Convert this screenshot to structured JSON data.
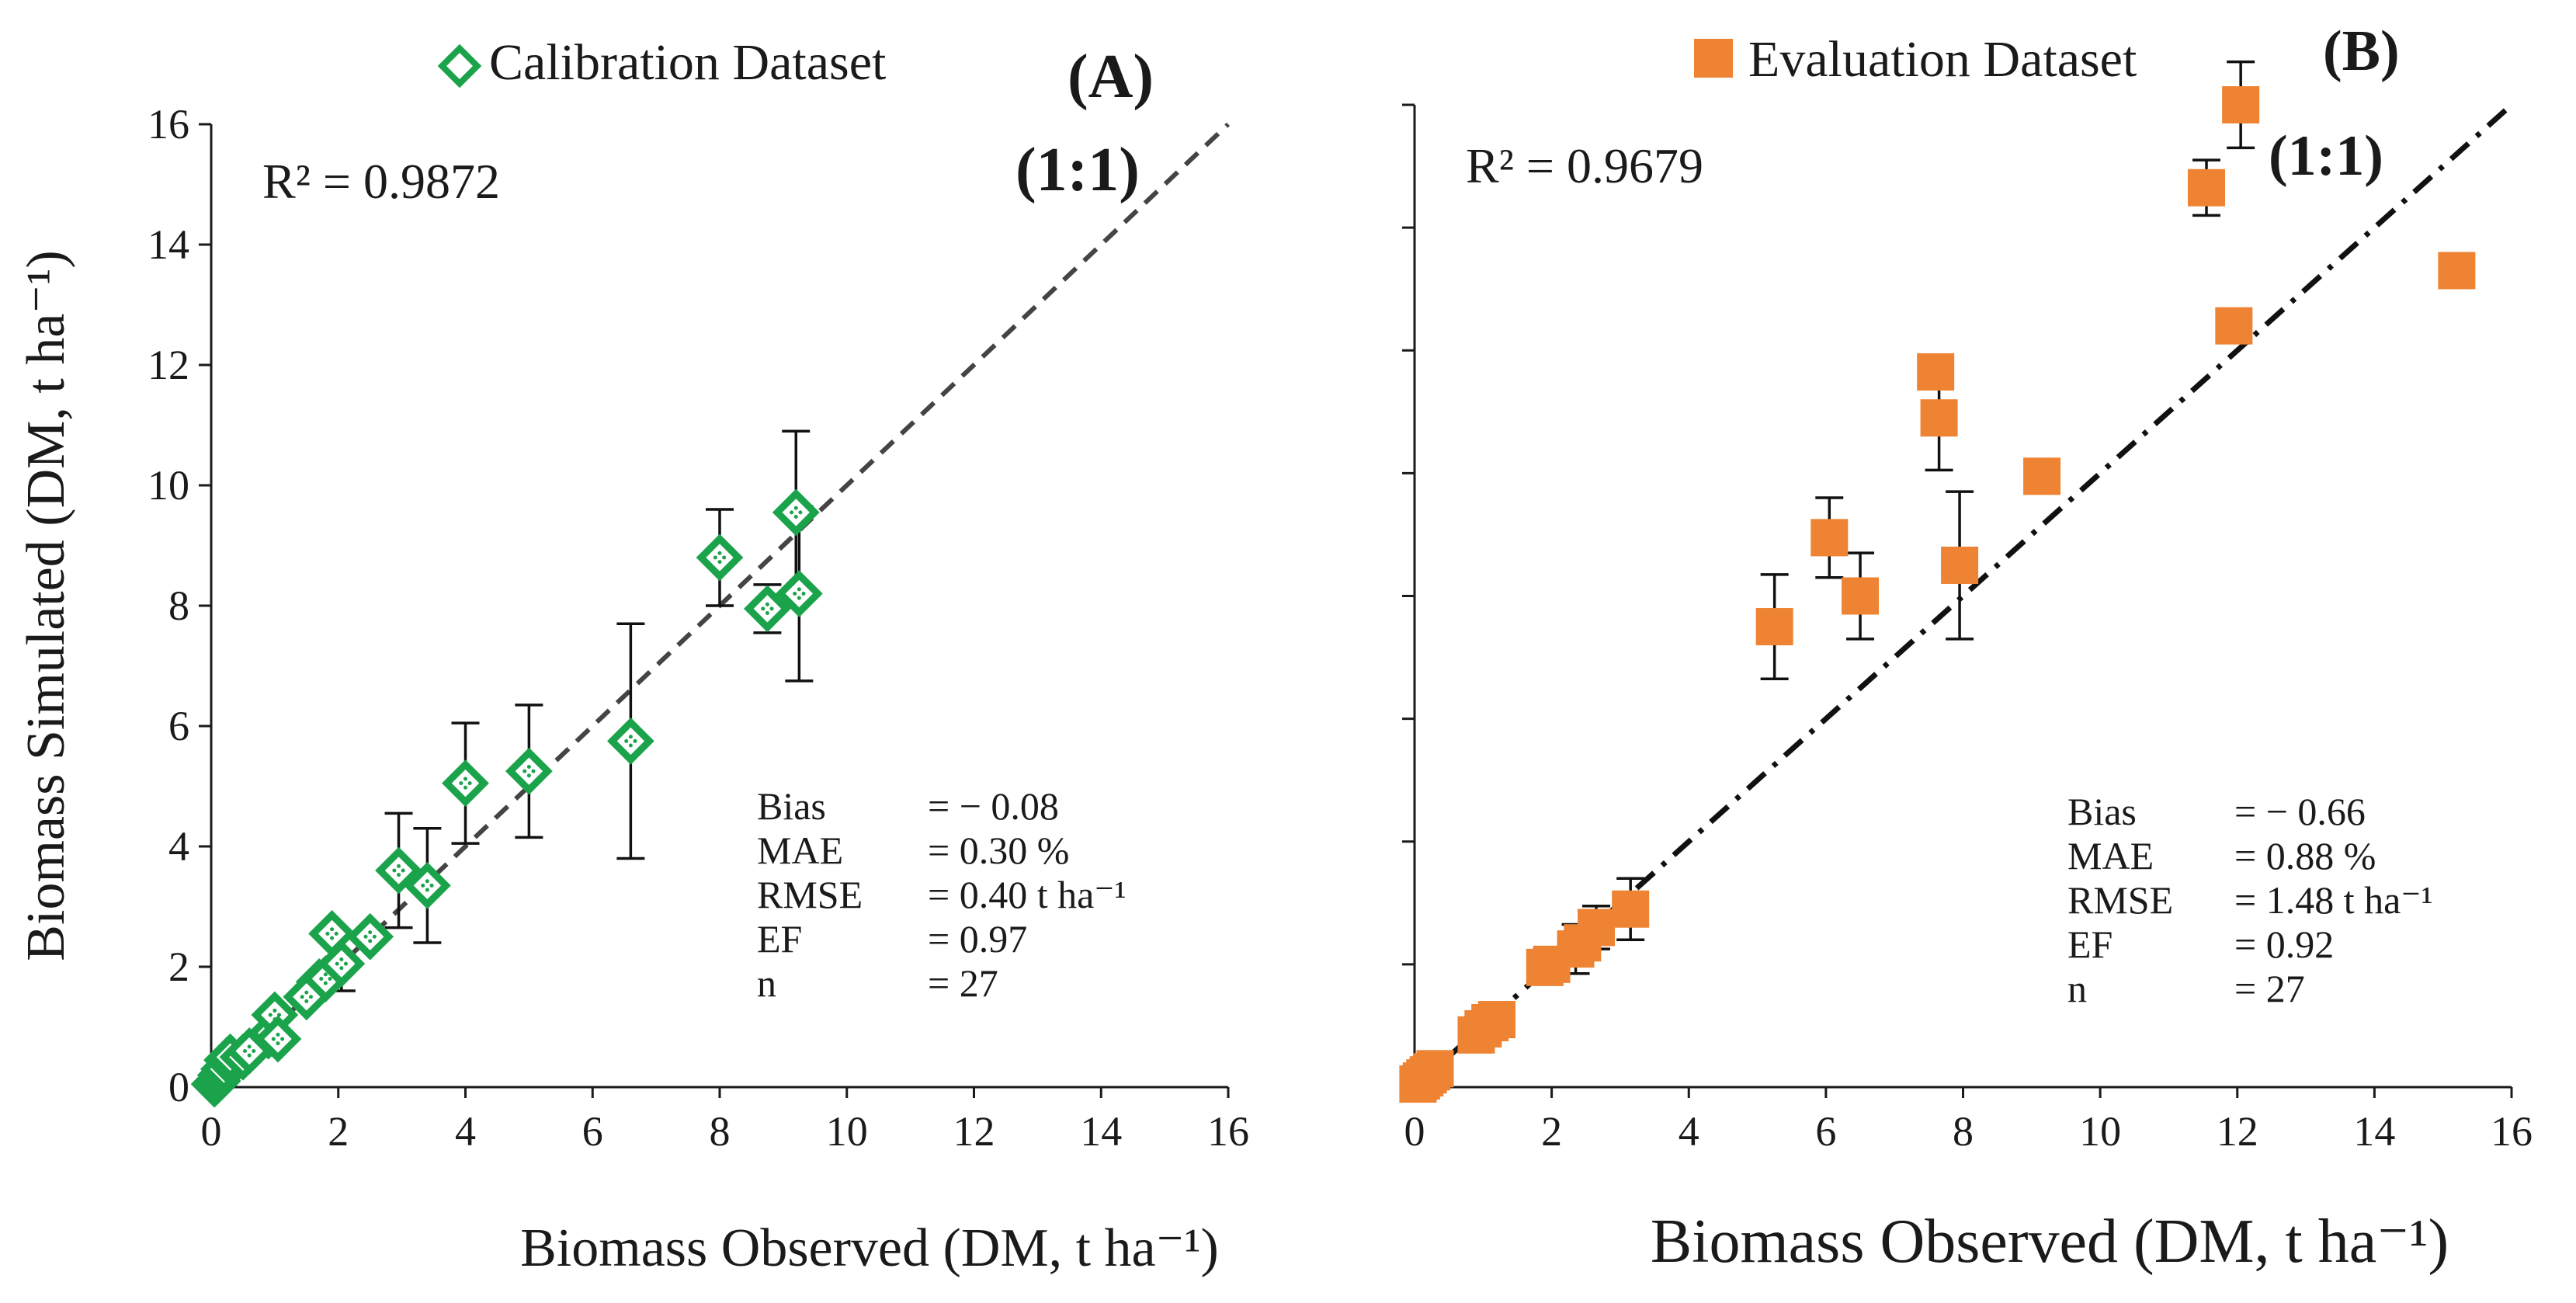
{
  "chart_data": [
    {
      "type": "scatter",
      "panel_label": "(A)",
      "ratio_label": "(1:1)",
      "legend": "Calibration Dataset",
      "xlabel": "Biomass Observed (DM, t ha⁻¹)",
      "ylabel": "Biomass Simulated (DM, t ha⁻¹)",
      "xlim": [
        0,
        16
      ],
      "ylim": [
        0,
        16
      ],
      "xticks": [
        "0",
        "2",
        "4",
        "6",
        "8",
        "10",
        "12",
        "14",
        "16"
      ],
      "yticks": [
        "0",
        "2",
        "4",
        "6",
        "8",
        "10",
        "12",
        "14",
        "16"
      ],
      "r2": "R² = 0.9872",
      "stats": [
        {
          "label": "Bias",
          "value": "= − 0.08"
        },
        {
          "label": "MAE",
          "value": "=  0.30 %"
        },
        {
          "label": "RMSE",
          "value": "=  0.40 t ha⁻¹"
        },
        {
          "label": "EF",
          "value": "=  0.97"
        },
        {
          "label": "n",
          "value": "= 27"
        }
      ],
      "marker_color": "#1aa34a",
      "points": [
        {
          "x": 0.05,
          "y": 0.05
        },
        {
          "x": 0.1,
          "y": 0.1
        },
        {
          "x": 0.15,
          "y": 0.2
        },
        {
          "x": 0.2,
          "y": 0.3
        },
        {
          "x": 0.25,
          "y": 0.45
        },
        {
          "x": 0.3,
          "y": 0.5
        },
        {
          "x": 0.9,
          "y": 0.85
        },
        {
          "x": 0.95,
          "y": 0.9
        },
        {
          "x": 1.0,
          "y": 1.2
        },
        {
          "x": 1.05,
          "y": 0.8
        },
        {
          "x": 1.7,
          "y": 1.75
        },
        {
          "x": 1.8,
          "y": 1.8
        },
        {
          "x": 1.9,
          "y": 2.55
        },
        {
          "x": 2.05,
          "y": 2.05,
          "err": 0.45
        },
        {
          "x": 2.95,
          "y": 3.6,
          "err": 0.95
        },
        {
          "x": 3.4,
          "y": 3.35,
          "err": 0.95
        },
        {
          "x": 4.0,
          "y": 5.05,
          "err": 1.0
        },
        {
          "x": 5.0,
          "y": 5.25,
          "err": 1.1
        },
        {
          "x": 6.6,
          "y": 5.75,
          "err": 1.95
        },
        {
          "x": 8.0,
          "y": 8.8,
          "err": 0.8
        },
        {
          "x": 8.75,
          "y": 7.95,
          "err": 0.4
        },
        {
          "x": 9.2,
          "y": 9.55,
          "err": 1.35
        },
        {
          "x": 9.25,
          "y": 8.2,
          "err": 1.45
        },
        {
          "x": 0.5,
          "y": 0.5
        },
        {
          "x": 0.6,
          "y": 0.6
        },
        {
          "x": 1.5,
          "y": 1.5
        },
        {
          "x": 2.5,
          "y": 2.5
        }
      ]
    },
    {
      "type": "scatter",
      "panel_label": "(B)",
      "ratio_label": "(1:1)",
      "legend": "Evaluation Dataset",
      "xlabel": "Biomass Observed (DM, t ha⁻¹)",
      "ylabel": "",
      "xlim": [
        0,
        16
      ],
      "ylim": [
        0,
        16
      ],
      "xticks": [
        "0",
        "2",
        "4",
        "6",
        "8",
        "10",
        "12",
        "14",
        "16"
      ],
      "r2": "R² = 0.9679",
      "stats": [
        {
          "label": "Bias",
          "value": "= − 0.66"
        },
        {
          "label": "MAE",
          "value": "=  0.88 %"
        },
        {
          "label": "RMSE",
          "value": "=  1.48 t ha⁻¹"
        },
        {
          "label": "EF",
          "value": "=  0.92"
        },
        {
          "label": "n",
          "value": "=  27"
        }
      ],
      "marker_color": "#ee8433",
      "points": [
        {
          "x": 0.05,
          "y": 0.05
        },
        {
          "x": 0.1,
          "y": 0.1
        },
        {
          "x": 0.15,
          "y": 0.15
        },
        {
          "x": 0.2,
          "y": 0.2
        },
        {
          "x": 0.25,
          "y": 0.25
        },
        {
          "x": 0.3,
          "y": 0.3
        },
        {
          "x": 0.9,
          "y": 0.85
        },
        {
          "x": 1.0,
          "y": 0.95
        },
        {
          "x": 1.1,
          "y": 1.05
        },
        {
          "x": 1.2,
          "y": 1.1
        },
        {
          "x": 1.9,
          "y": 1.95
        },
        {
          "x": 2.0,
          "y": 2.0
        },
        {
          "x": 2.35,
          "y": 2.25,
          "err": 0.4
        },
        {
          "x": 2.45,
          "y": 2.35
        },
        {
          "x": 2.65,
          "y": 2.6,
          "err": 0.35
        },
        {
          "x": 3.15,
          "y": 2.9,
          "err": 0.5
        },
        {
          "x": 5.25,
          "y": 7.5,
          "err": 0.85
        },
        {
          "x": 6.05,
          "y": 8.95,
          "err": 0.65
        },
        {
          "x": 6.5,
          "y": 8.0,
          "err": 0.7
        },
        {
          "x": 7.6,
          "y": 11.65
        },
        {
          "x": 7.65,
          "y": 10.9,
          "err": 0.85
        },
        {
          "x": 7.95,
          "y": 8.5,
          "err": 1.2
        },
        {
          "x": 9.15,
          "y": 9.95
        },
        {
          "x": 11.55,
          "y": 14.65,
          "err": 0.45
        },
        {
          "x": 11.95,
          "y": 12.4
        },
        {
          "x": 12.05,
          "y": 16.0,
          "err": 0.7
        },
        {
          "x": 15.2,
          "y": 13.3
        }
      ]
    }
  ]
}
